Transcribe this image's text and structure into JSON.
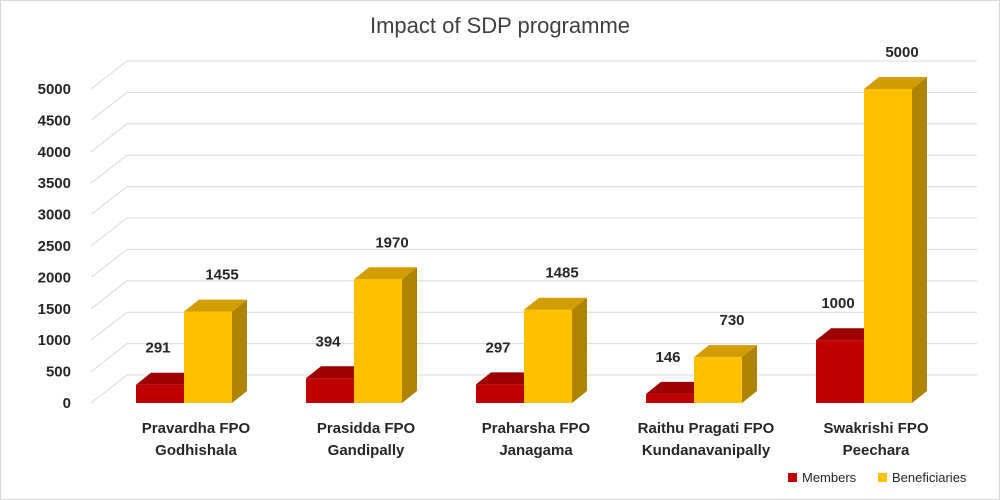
{
  "chart_data": {
    "type": "bar",
    "title": "Impact of SDP programme",
    "categories": [
      [
        "Pravardha FPO",
        "Godhishala"
      ],
      [
        "Prasidda FPO",
        "Gandipally"
      ],
      [
        "Praharsha FPO",
        "Janagama"
      ],
      [
        "Raithu Pragati FPO",
        "Kundanavanipally"
      ],
      [
        "Swakrishi FPO",
        "Peechara"
      ]
    ],
    "series": [
      {
        "name": "Members",
        "values": [
          291,
          394,
          297,
          146,
          1000
        ],
        "color": "#c00000"
      },
      {
        "name": "Beneficiaries",
        "values": [
          1455,
          1970,
          1485,
          730,
          5000
        ],
        "color": "#ffc000"
      }
    ],
    "ylim": [
      0,
      5000
    ],
    "yticks": [
      0,
      500,
      1000,
      1500,
      2000,
      2500,
      3000,
      3500,
      4000,
      4500,
      5000
    ],
    "grid": true,
    "legend": "bottom-right",
    "style": "3d-column"
  }
}
